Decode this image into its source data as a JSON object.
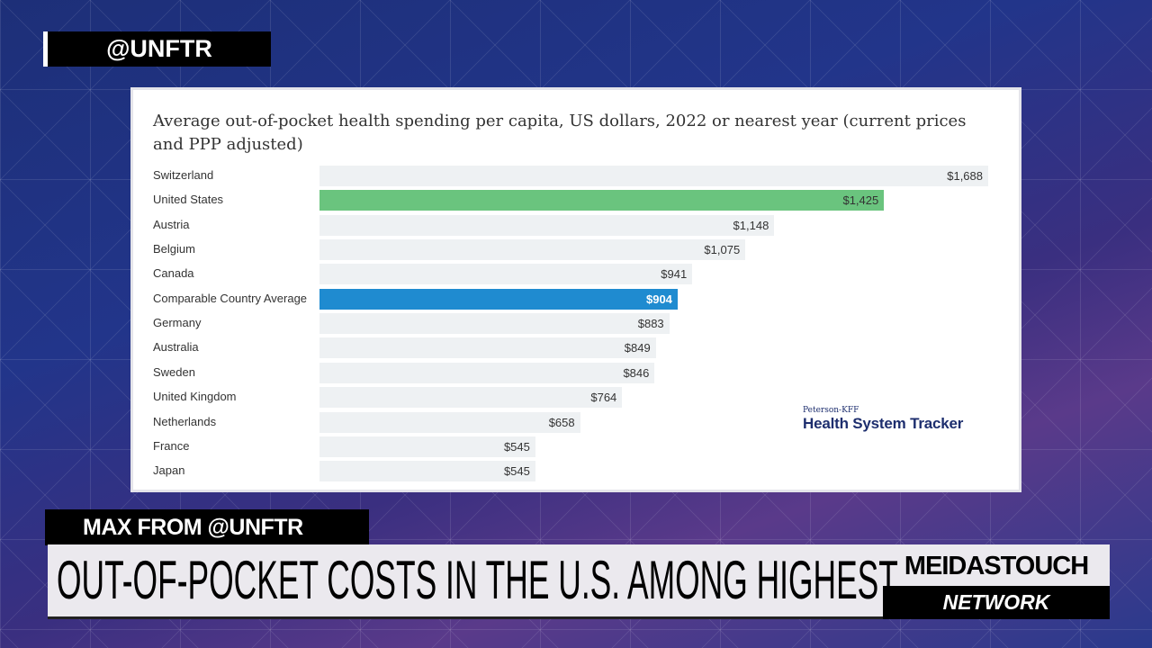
{
  "overlay": {
    "handle_tag": "@UNFTR",
    "speaker": "MAX FROM @UNFTR",
    "headline": "OUT-OF-POCKET COSTS IN THE U.S. AMONG HIGHEST",
    "brand_top": "MEIDASTOUCH",
    "brand_bottom": "NETWORK"
  },
  "source_logo": {
    "small": "Peterson-KFF",
    "big": "Health System Tracker"
  },
  "chart_data": {
    "type": "bar",
    "orientation": "horizontal",
    "title": "Average out-of-pocket health spending per capita, US dollars, 2022 or nearest year (current prices and PPP adjusted)",
    "xlim": [
      0,
      1688
    ],
    "categories": [
      "Switzerland",
      "United States",
      "Austria",
      "Belgium",
      "Canada",
      "Comparable Country Average",
      "Germany",
      "Australia",
      "Sweden",
      "United Kingdom",
      "Netherlands",
      "France",
      "Japan"
    ],
    "values": [
      1688,
      1425,
      1148,
      1075,
      941,
      904,
      883,
      849,
      846,
      764,
      658,
      545,
      545
    ],
    "labels": [
      "$1,688",
      "$1,425",
      "$1,148",
      "$1,075",
      "$941",
      "$904",
      "$883",
      "$849",
      "$846",
      "$764",
      "$658",
      "$545",
      "$545"
    ],
    "colors": {
      "default": "#eef1f3",
      "highlight_us": "#6ac47e",
      "highlight_avg": "#1f8bd0"
    }
  }
}
